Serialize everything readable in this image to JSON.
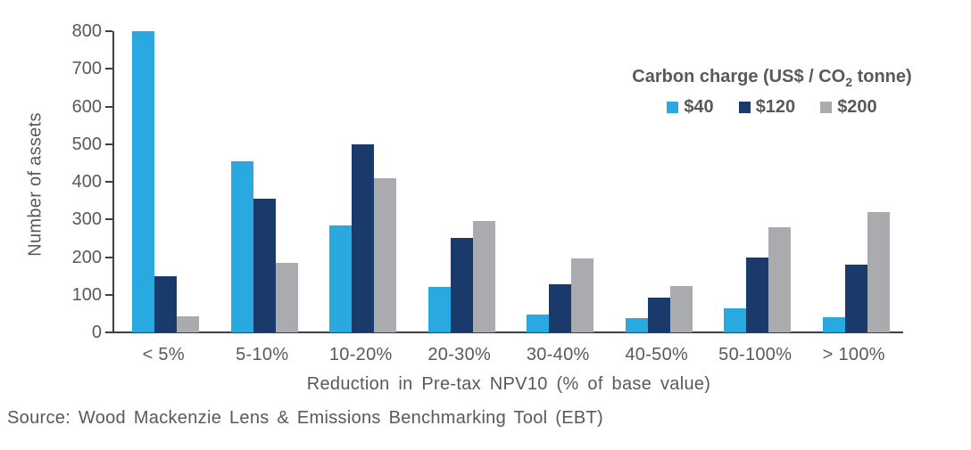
{
  "chart_data": {
    "type": "bar",
    "title": "",
    "categories": [
      "< 5%",
      "5-10%",
      "10-20%",
      "20-30%",
      "30-40%",
      "40-50%",
      "50-100%",
      "> 100%"
    ],
    "series": [
      {
        "name": "$40",
        "color": "#29A9E0",
        "values": [
          800,
          455,
          283,
          120,
          48,
          37,
          65,
          40
        ]
      },
      {
        "name": "$120",
        "color": "#1B3A6C",
        "values": [
          148,
          355,
          500,
          250,
          128,
          92,
          200,
          180
        ]
      },
      {
        "name": "$200",
        "color": "#A9ABAE",
        "values": [
          42,
          185,
          410,
          295,
          197,
          123,
          280,
          320
        ]
      }
    ],
    "xlabel": "Reduction in Pre-tax NPV10 (% of base value)",
    "ylabel": "Number of assets",
    "ylim": [
      0,
      800
    ],
    "ytick_step": 100,
    "ytick_labels": [
      "0",
      "100",
      "200",
      "300",
      "400",
      "500",
      "600",
      "700",
      "800"
    ],
    "grid": false,
    "legend": {
      "position": "top-right",
      "title_text": "Carbon charge (US$ / CO2 tonne)",
      "title_main": "Carbon charge (US$ / CO",
      "title_sub": "2",
      "title_tail": " tonne)"
    }
  },
  "source": {
    "text": "Source: Wood Mackenzie Lens & Emissions Benchmarking Tool (EBT)"
  },
  "colors": {
    "background": "#FFFFFF",
    "axis": "#404040",
    "text": "#595959",
    "series_40": "#29A9E0",
    "series_120": "#1B3A6C",
    "series_200": "#A9ABAE"
  }
}
